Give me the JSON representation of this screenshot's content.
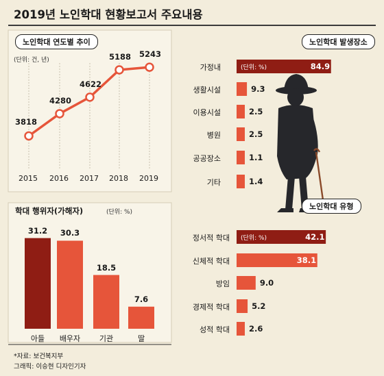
{
  "main_title": "2019년 노인학대 현황보고서 주요내용",
  "source_note": "*자료: 보건복지부",
  "graphic_credit": "그래픽: 이승현 디자인기자",
  "colors": {
    "orange": "#e6553a",
    "dark_red": "#8f1d14",
    "line": "#e6553a",
    "bg": "#f3eddc",
    "panel": "#f7f3e6"
  },
  "chart_data": [
    {
      "type": "line",
      "title": "노인학대 연도별 추이",
      "unit": "(단위: 건, 년)",
      "x": [
        "2015",
        "2016",
        "2017",
        "2018",
        "2019"
      ],
      "values": [
        3818,
        4280,
        4622,
        5188,
        5243
      ],
      "value_labels": [
        "3818",
        "4280",
        "4622",
        "5188",
        "5243"
      ],
      "ylim": [
        3300,
        5500
      ]
    },
    {
      "type": "bar",
      "title": "학대 행위자(가해자)",
      "unit": "(단위: %)",
      "categories": [
        "아들",
        "배우자",
        "기관",
        "딸"
      ],
      "values": [
        31.2,
        30.3,
        18.5,
        7.6
      ],
      "value_labels": [
        "31.2",
        "30.3",
        "18.5",
        "7.6"
      ],
      "ylim": [
        0,
        33
      ]
    },
    {
      "type": "bar",
      "orientation": "horizontal",
      "title": "노인학대 발생장소",
      "unit": "(단위: %)",
      "categories": [
        "가정내",
        "생활시설",
        "이용시설",
        "병원",
        "공공장소",
        "기타"
      ],
      "values": [
        84.9,
        9.3,
        2.5,
        2.5,
        1.1,
        1.4
      ],
      "value_labels": [
        "84.9",
        "9.3",
        "2.5",
        "2.5",
        "1.1",
        "1.4"
      ],
      "xlim": [
        0,
        90
      ]
    },
    {
      "type": "bar",
      "orientation": "horizontal",
      "title": "노인학대 유형",
      "unit": "(단위: %)",
      "categories": [
        "정서적 학대",
        "신체적 학대",
        "방임",
        "경제적 학대",
        "성적 학대"
      ],
      "values": [
        42.1,
        38.1,
        9.0,
        5.2,
        2.6
      ],
      "value_labels": [
        "42.1",
        "38.1",
        "9.0",
        "5.2",
        "2.6"
      ],
      "xlim": [
        0,
        44
      ]
    }
  ]
}
